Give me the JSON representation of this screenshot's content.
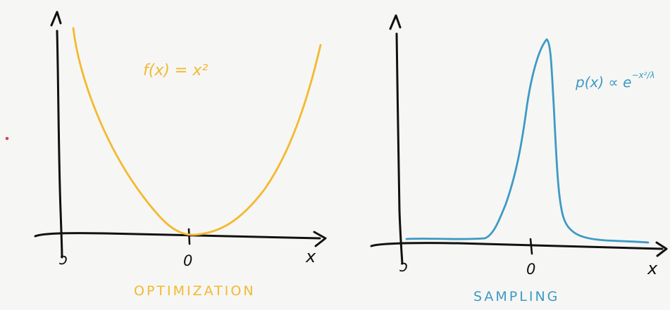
{
  "colors": {
    "ink": "#111111",
    "optimization": "#f4b92f",
    "sampling": "#3d9ac4",
    "background": "#f6f6f5",
    "dot": "#d0485a"
  },
  "left_panel": {
    "y_axis_label": "Δ",
    "x_axis_label": "x",
    "x_left_tick_label": "ɔ",
    "x_zero_label": "0",
    "formula": "f(x) = x²",
    "caption": "OPTIMIZATION"
  },
  "right_panel": {
    "y_axis_label": "Δ",
    "x_axis_label": "x",
    "x_left_tick_label": "ɔ",
    "x_zero_label": "0",
    "formula_base": "p(x) ∝ e",
    "formula_exp": "−x²/λ",
    "caption": "SAMPLING"
  }
}
